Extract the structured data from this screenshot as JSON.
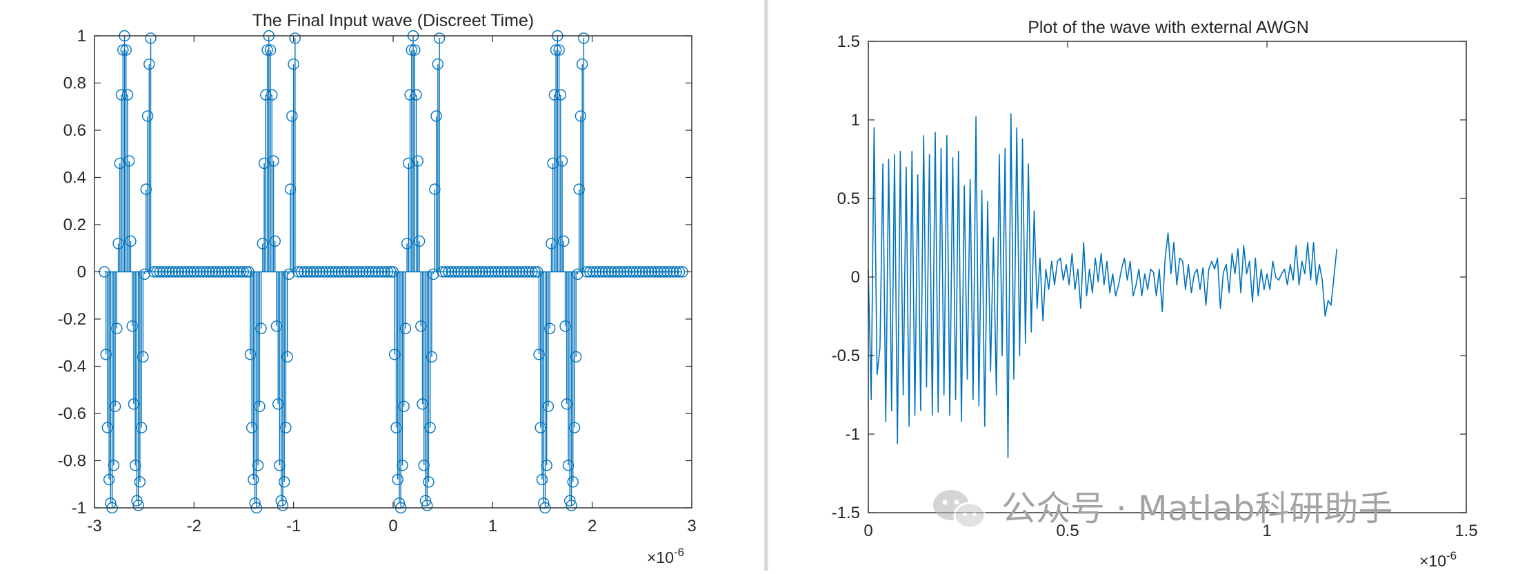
{
  "chart_data": [
    {
      "type": "stem",
      "title": "The Final Input wave (Discreet Time)",
      "xlabel": "",
      "ylabel": "",
      "xlim": [
        -3,
        3
      ],
      "ylim": [
        -1,
        1
      ],
      "x_scale_label": "×10",
      "x_scale_exponent": "-6",
      "x_ticks": [
        -3,
        -2,
        -1,
        0,
        1,
        2,
        3
      ],
      "y_ticks": [
        -1,
        -0.8,
        -0.6,
        -0.4,
        -0.2,
        0,
        0.2,
        0.4,
        0.6,
        0.8,
        1
      ],
      "x_tick_labels": [
        "-3",
        "-2",
        "-1",
        "0",
        "1",
        "2",
        "3"
      ],
      "y_tick_labels": [
        "-1",
        "-0.8",
        "-0.6",
        "-0.4",
        "-0.2",
        "0",
        "0.2",
        "0.4",
        "0.6",
        "0.8",
        "1"
      ],
      "color": "#0072BD",
      "grid": false,
      "burst_offsets": [
        -2.9,
        -1.45,
        0,
        1.45
      ],
      "burst_sequence": [
        0,
        -0.35,
        -0.66,
        -0.88,
        -0.98,
        -1,
        -0.82,
        -0.57,
        -0.24,
        0.12,
        0.46,
        0.75,
        0.94,
        1,
        0.94,
        0.75,
        0.47,
        0.13,
        -0.23,
        -0.56,
        -0.82,
        -0.97,
        -0.99,
        -0.89,
        -0.66,
        -0.36,
        -0.01,
        0.35,
        0.66,
        0.88,
        0.99
      ],
      "burst_dx": 0.0155,
      "zero_spacing": 0.031,
      "x_end": 2.9
    },
    {
      "type": "line",
      "title": "Plot of the wave with external AWGN",
      "xlabel": "",
      "ylabel": "",
      "xlim": [
        0,
        1.5
      ],
      "ylim": [
        -1.5,
        1.5
      ],
      "x_scale_label": "×10",
      "x_scale_exponent": "-6",
      "x_ticks": [
        0,
        0.5,
        1,
        1.5
      ],
      "y_ticks": [
        -1.5,
        -1,
        -0.5,
        0,
        0.5,
        1,
        1.5
      ],
      "x_tick_labels": [
        "0",
        "0.5",
        "1",
        "1.5"
      ],
      "y_tick_labels": [
        "-1.5",
        "-1",
        "-0.5",
        "0",
        "0.5",
        "1",
        "1.5"
      ],
      "color": "#0072BD",
      "grid": false,
      "dx": 0.0073,
      "y": [
        0.05,
        -0.78,
        0.95,
        -0.62,
        -0.45,
        0.72,
        -0.92,
        0.75,
        -0.85,
        0.78,
        -1.06,
        0.8,
        -0.75,
        0.7,
        -0.95,
        0.8,
        -0.88,
        0.65,
        -0.85,
        0.9,
        -0.7,
        0.78,
        -0.88,
        0.92,
        -0.86,
        0.82,
        -0.75,
        0.9,
        -0.88,
        0.76,
        -0.78,
        0.8,
        -0.92,
        0.58,
        -0.65,
        0.62,
        -0.78,
        1.02,
        -0.82,
        0.55,
        -0.95,
        0.48,
        -0.6,
        0.25,
        -0.75,
        0.78,
        -0.5,
        0.82,
        -1.15,
        1.04,
        -0.65,
        0.95,
        -0.5,
        0.88,
        -0.42,
        0.72,
        -0.35,
        0.42,
        -0.2,
        0.12,
        -0.28,
        0.05,
        -0.08,
        0.1,
        -0.05,
        0.1,
        0.12,
        -0.02,
        0.08,
        -0.05,
        0.15,
        -0.08,
        0.05,
        -0.2,
        0.22,
        -0.12,
        0.05,
        -0.1,
        0.12,
        -0.03,
        0.15,
        -0.05,
        0.1,
        -0.1,
        0.02,
        -0.12,
        -0.05,
        0.05,
        0.12,
        -0.02,
        0.1,
        -0.12,
        -0.05,
        0.05,
        -0.12,
        0.02,
        -0.08,
        0.05,
        0.03,
        -0.12,
        0.05,
        -0.22,
        0.12,
        0.28,
        0.02,
        0.22,
        -0.05,
        0.12,
        0.1,
        -0.08,
        0.08,
        -0.1,
        0.02,
        0.05,
        -0.08,
        0.06,
        -0.18,
        0.05,
        0.1,
        0.05,
        0.12,
        -0.2,
        0.03,
        0.08,
        -0.1,
        0.15,
        0.02,
        0.18,
        -0.1,
        0.2,
        0.02,
        0.1,
        -0.16,
        0.12,
        -0.12,
        0.05,
        -0.08,
        0.02,
        -0.08,
        0.1,
        0.0,
        -0.02,
        0.02,
        0.05,
        -0.05,
        0.08,
        -0.02,
        0.2,
        -0.05,
        0.1,
        0.02,
        0.22,
        -0.02,
        0.22,
        -0.05,
        0.08,
        -0.02,
        -0.25,
        -0.15,
        -0.18,
        0.0,
        0.18
      ]
    }
  ],
  "watermark": {
    "icon": "wechat-icon",
    "text": "公众号 · Matlab科研助手"
  }
}
